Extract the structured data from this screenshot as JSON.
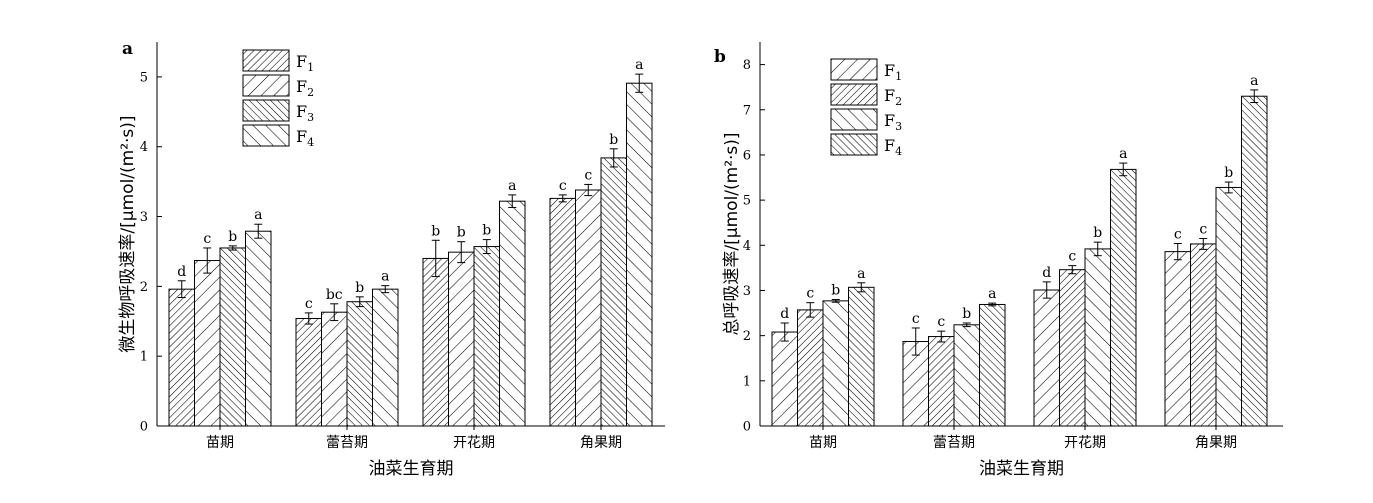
{
  "chart_data": [
    {
      "type": "bar",
      "panel_label": "a",
      "ylabel": "微生物呼吸速率/[μmol/(m²·s)]",
      "xlabel": "油菜生育期",
      "ylim": [
        0,
        5.5
      ],
      "yticks": [
        0,
        1,
        2,
        3,
        4,
        5
      ],
      "categories": [
        "苗期",
        "蕾苔期",
        "开花期",
        "角果期"
      ],
      "legend_position": "top-left",
      "series": [
        {
          "name": "F1",
          "name_main": "F",
          "name_sub": "1",
          "pattern": "hatch-dense-fwd",
          "values": [
            1.96,
            1.54,
            2.4,
            3.26
          ],
          "errors": [
            0.12,
            0.08,
            0.26,
            0.05
          ],
          "sig": [
            "d",
            "c",
            "b",
            "c"
          ]
        },
        {
          "name": "F2",
          "name_main": "F",
          "name_sub": "2",
          "pattern": "hatch-wide-fwd",
          "values": [
            2.37,
            1.63,
            2.49,
            3.38
          ],
          "errors": [
            0.18,
            0.12,
            0.15,
            0.08
          ],
          "sig": [
            "c",
            "bc",
            "b",
            "c"
          ]
        },
        {
          "name": "F3",
          "name_main": "F",
          "name_sub": "3",
          "pattern": "hatch-dense-back",
          "values": [
            2.55,
            1.78,
            2.57,
            3.84
          ],
          "errors": [
            0.03,
            0.07,
            0.1,
            0.13
          ],
          "sig": [
            "b",
            "b",
            "b",
            "b"
          ]
        },
        {
          "name": "F4",
          "name_main": "F",
          "name_sub": "4",
          "pattern": "hatch-wide-back",
          "values": [
            2.79,
            1.96,
            3.22,
            4.91
          ],
          "errors": [
            0.1,
            0.05,
            0.09,
            0.13
          ],
          "sig": [
            "a",
            "a",
            "a",
            "a"
          ]
        }
      ]
    },
    {
      "type": "bar",
      "panel_label": "b",
      "ylabel": "总呼吸速率/[μmol/(m²·s)]",
      "xlabel": "油菜生育期",
      "ylim": [
        0,
        8.5
      ],
      "yticks": [
        0,
        1,
        2,
        3,
        4,
        5,
        6,
        7,
        8
      ],
      "categories": [
        "苗期",
        "蕾苔期",
        "开花期",
        "角果期"
      ],
      "legend_position": "top-left",
      "series": [
        {
          "name": "F1",
          "name_main": "F",
          "name_sub": "1",
          "pattern": "hatch-wide-fwd",
          "values": [
            2.08,
            1.87,
            3.01,
            3.86
          ],
          "errors": [
            0.2,
            0.3,
            0.18,
            0.18
          ],
          "sig": [
            "d",
            "c",
            "d",
            "c"
          ]
        },
        {
          "name": "F2",
          "name_main": "F",
          "name_sub": "2",
          "pattern": "hatch-dense-fwd",
          "values": [
            2.57,
            1.98,
            3.46,
            4.03
          ],
          "errors": [
            0.16,
            0.12,
            0.09,
            0.12
          ],
          "sig": [
            "c",
            "c",
            "c",
            "c"
          ]
        },
        {
          "name": "F3",
          "name_main": "F",
          "name_sub": "3",
          "pattern": "hatch-wide-back",
          "values": [
            2.77,
            2.24,
            3.92,
            5.28
          ],
          "errors": [
            0.03,
            0.04,
            0.15,
            0.12
          ],
          "sig": [
            "b",
            "b",
            "b",
            "b"
          ]
        },
        {
          "name": "F4",
          "name_main": "F",
          "name_sub": "4",
          "pattern": "hatch-dense-back",
          "values": [
            3.07,
            2.69,
            5.68,
            7.3
          ],
          "errors": [
            0.1,
            0.03,
            0.14,
            0.14
          ],
          "sig": [
            "a",
            "a",
            "a",
            "a"
          ]
        }
      ]
    }
  ]
}
